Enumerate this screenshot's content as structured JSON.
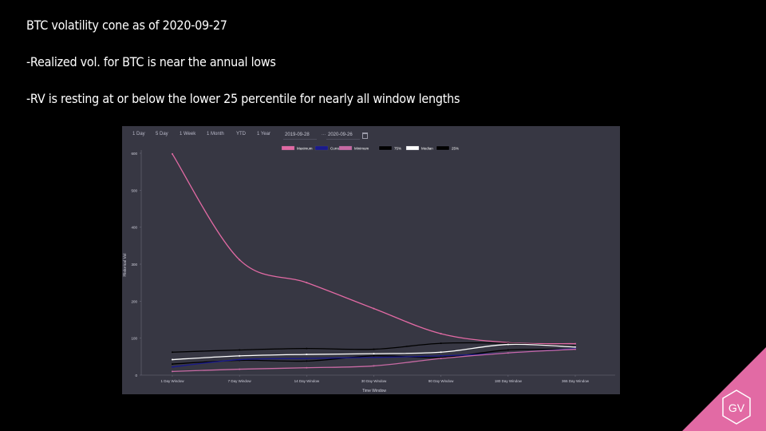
{
  "slide": {
    "lines": [
      "BTC volatility cone as of 2020-09-27",
      "-Realized vol. for BTC is near the annual lows",
      "-RV is resting at or below the lower 25 percentile for nearly all window lengths"
    ],
    "logo_text": "GV",
    "logo_color": "#e26aa4"
  },
  "range_selector": {
    "buttons": [
      "1 Day",
      "5 Day",
      "1 Week",
      "1 Month",
      "YTD",
      "1 Year"
    ],
    "start_date": "2019-09-28",
    "end_date": "2020-09-26",
    "separator": "...",
    "calendar_icon": "calendar-icon"
  },
  "chart_data": {
    "type": "line",
    "xlabel": "Time Window",
    "ylabel": "Historical Vol",
    "ylim": [
      0,
      600
    ],
    "yticks": [
      0,
      100,
      200,
      300,
      400,
      500,
      600
    ],
    "categories": [
      "1 Day Window",
      "7 Day Window",
      "14 Day Window",
      "30 Day Window",
      "90 Day Window",
      "180 Day Window",
      "365 Day Window"
    ],
    "legend_position": "top-center",
    "grid": false,
    "series": [
      {
        "name": "Maximum",
        "color": "#e26aa4",
        "values": [
          598,
          312,
          250,
          180,
          112,
          88,
          85
        ]
      },
      {
        "name": "Current",
        "color": "#1a1a8c",
        "values": [
          22,
          42,
          45,
          48,
          52,
          60,
          72
        ]
      },
      {
        "name": "Minimum",
        "color": "#c86aa4",
        "values": [
          10,
          16,
          20,
          25,
          45,
          60,
          70
        ]
      },
      {
        "name": "75%",
        "color": "#000000",
        "values": [
          62,
          68,
          72,
          70,
          86,
          86,
          78
        ]
      },
      {
        "name": "Median",
        "color": "#ffffff",
        "values": [
          42,
          52,
          56,
          58,
          62,
          83,
          76
        ]
      },
      {
        "name": "25%",
        "color": "#000000",
        "values": [
          30,
          40,
          38,
          52,
          48,
          68,
          70
        ]
      }
    ]
  }
}
